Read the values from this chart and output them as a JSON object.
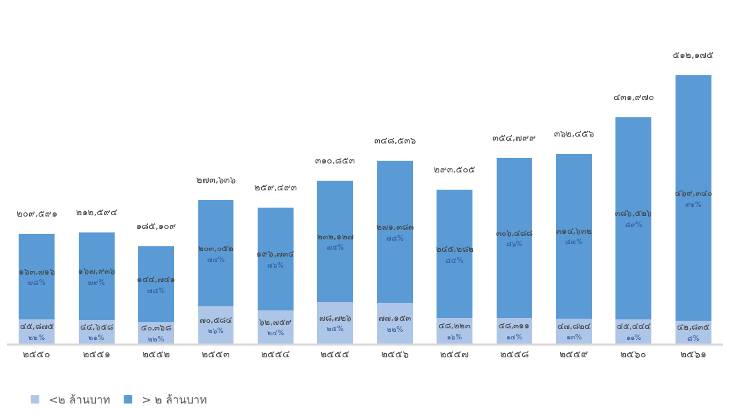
{
  "chart_data": {
    "type": "bar",
    "stacked": true,
    "categories": [
      "๒๕๕๐",
      "๒๕๕๑",
      "๒๕๕๒",
      "๒๕๕๓",
      "๒๕๕๔",
      "๒๕๕๕",
      "๒๕๕๖",
      "๒๕๕๗",
      "๒๕๕๘",
      "๒๕๕๙",
      "๒๕๖๐",
      "๒๕๖๑"
    ],
    "series": [
      {
        "name": "<๒ ล้านบาท",
        "color": "#adc5e7",
        "values": [
          45875,
          44658,
          40368,
          70584,
          62759,
          78726,
          77153,
          48223,
          48311,
          47824,
          45444,
          42835
        ],
        "value_labels": [
          "๔๕,๘๗๕\n๒๒%",
          "๔๔,๖๕๘\n๒๑%",
          "๔๐,๓๖๘\n๒๒%",
          "๗๐,๕๘๔\n๒๖%",
          "๖๒,๗๕๙\n๒๔%",
          "๗๘,๗๒๖\n๒๕%",
          "๗๗,๑๕๓\n๒๒%",
          "๔๘,๒๒๓\n๑๖%",
          "๔๘,๓๑๑\n๑๔%",
          "๔๗,๘๒๔\n๑๓%",
          "๔๕,๔๔๔\n๑๑%",
          "๔๒,๘๓๕\n๘%"
        ]
      },
      {
        "name": "> ๒ ล้านบาท",
        "color": "#5b9bd5",
        "values": [
          163716,
          167936,
          144741,
          203052,
          196734,
          232127,
          271383,
          245282,
          306488,
          314632,
          386526,
          469340
        ],
        "value_labels": [
          "๑๖๓,๗๑๖\n๗๘%",
          "๑๖๗,๙๓๖\n๗๙%",
          "๑๔๔,๗๔๑\n๗๘%",
          "๒๐๓,๐๕๒\n๗๔%",
          "๑๙๖,๗๓๔\n๗๖%",
          "๒๓๒,๑๒๗\n๗๕%",
          "๒๗๑,๓๘๓\n๗๘%",
          "๒๔๕,๒๘๒\n๘๔%",
          "๓๐๖,๔๘๘\n๘๖%",
          "๓๑๔,๖๓๒\n๘๗%",
          "๓๘๖,๕๒๖\n๘๙%",
          "๔๖๙,๓๔๐\n๙๒%"
        ]
      }
    ],
    "totals": [
      "๒๐๙,๕๙๑",
      "๒๑๒,๕๙๔",
      "๑๘๕,๑๐๙",
      "๒๗๓,๖๓๖",
      "๒๕๙,๔๙๓",
      "๓๑๐,๘๕๓",
      "๓๔๘,๕๓๖",
      "๒๙๓,๕๐๕",
      "๓๕๔,๗๙๙",
      "๓๖๒,๔๕๖",
      "๔๓๑,๙๗๐",
      "๕๑๒,๑๗๕"
    ],
    "tick_labels": "x",
    "legend": "bottom"
  }
}
